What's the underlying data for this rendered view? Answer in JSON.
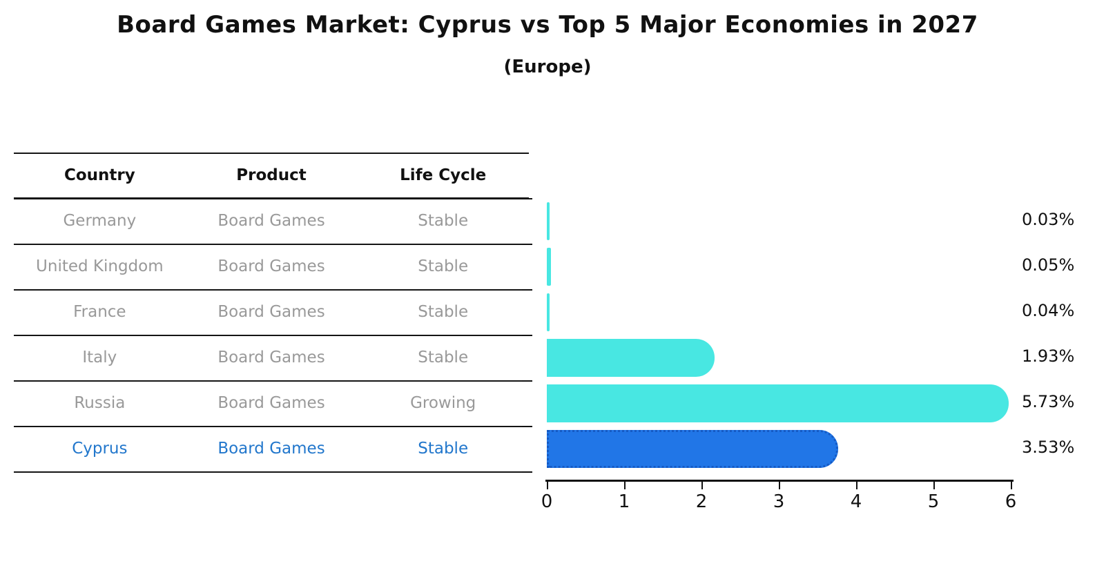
{
  "title": "Board Games Market: Cyprus vs Top 5 Major Economies in 2027",
  "subtitle": "(Europe)",
  "table": {
    "headers": [
      "Country",
      "Product",
      "Life Cycle"
    ],
    "rows": [
      {
        "country": "Germany",
        "product": "Board Games",
        "life_cycle": "Stable",
        "highlighted": false
      },
      {
        "country": "United Kingdom",
        "product": "Board Games",
        "life_cycle": "Stable",
        "highlighted": false
      },
      {
        "country": "France",
        "product": "Board Games",
        "life_cycle": "Stable",
        "highlighted": false
      },
      {
        "country": "Italy",
        "product": "Board Games",
        "life_cycle": "Stable",
        "highlighted": false
      },
      {
        "country": "Russia",
        "product": "Board Games",
        "life_cycle": "Growing",
        "highlighted": false
      },
      {
        "country": "Cyprus",
        "product": "Board Games",
        "life_cycle": "Stable",
        "highlighted": true
      }
    ]
  },
  "chart_data": {
    "type": "bar",
    "orientation": "horizontal",
    "title": "Board Games Market: Cyprus vs Top 5 Major Economies in 2027 (Europe)",
    "categories": [
      "Germany",
      "United Kingdom",
      "France",
      "Italy",
      "Russia",
      "Cyprus"
    ],
    "values": [
      0.03,
      0.05,
      0.04,
      1.93,
      5.73,
      3.53
    ],
    "value_labels": [
      "0.03%",
      "0.05%",
      "0.04%",
      "1.93%",
      "5.73%",
      "3.53%"
    ],
    "highlighted_category": "Cyprus",
    "xlabel": "",
    "ylabel": "",
    "xlim": [
      0,
      6
    ],
    "x_ticks": [
      0,
      1,
      2,
      3,
      4,
      5,
      6
    ],
    "grid": false,
    "legend": false,
    "colors": {
      "default_bar": "#48e7e2",
      "highlight_bar": "#2176e7",
      "highlight_bar_border": "#155ac4",
      "highlight_text": "#2277cc",
      "row_text": "#999999",
      "axis_and_title": "#111111"
    }
  }
}
